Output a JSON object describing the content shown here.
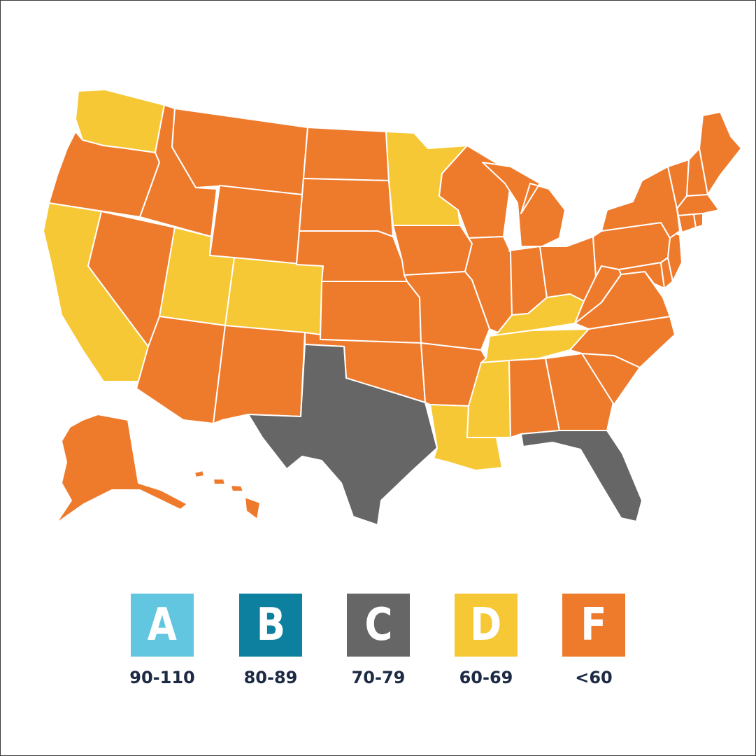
{
  "colors": {
    "A": "#62c6e0",
    "B": "#0d7f9f",
    "C": "#666666",
    "D": "#f7c835",
    "F": "#ee7a2c"
  },
  "legend": [
    {
      "grade": "A",
      "range": "90-110"
    },
    {
      "grade": "B",
      "range": "80-89"
    },
    {
      "grade": "C",
      "range": "70-79"
    },
    {
      "grade": "D",
      "range": "60-69"
    },
    {
      "grade": "F",
      "range": "<60"
    }
  ],
  "states": {
    "WA": "D",
    "OR": "F",
    "CA": "D",
    "NV": "F",
    "ID": "F",
    "MT": "F",
    "WY": "F",
    "UT": "D",
    "CO": "D",
    "AZ": "F",
    "NM": "F",
    "ND": "F",
    "SD": "F",
    "NE": "F",
    "KS": "F",
    "OK": "F",
    "TX": "C",
    "MN": "D",
    "IA": "F",
    "MO": "F",
    "AR": "F",
    "LA": "D",
    "WI": "F",
    "IL": "F",
    "MI": "F",
    "IN": "F",
    "OH": "F",
    "KY": "D",
    "TN": "D",
    "MS": "D",
    "AL": "F",
    "GA": "F",
    "FL": "C",
    "SC": "F",
    "NC": "F",
    "VA": "F",
    "WV": "F",
    "PA": "F",
    "NY": "F",
    "NJ": "F",
    "DE": "F",
    "MD": "F",
    "VT": "F",
    "NH": "F",
    "ME": "F",
    "MA": "F",
    "CT": "F",
    "RI": "F",
    "AK": "F",
    "HI": "F"
  }
}
